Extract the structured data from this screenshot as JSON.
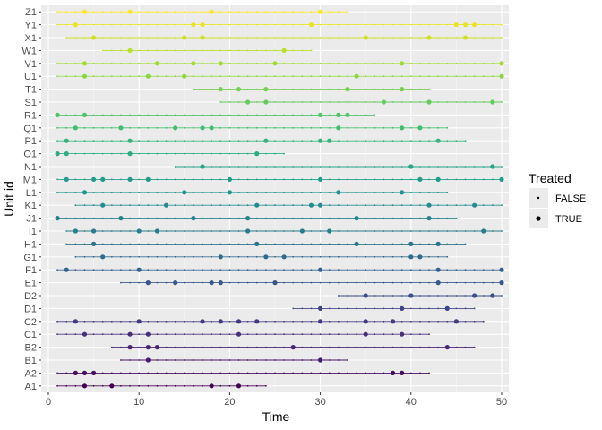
{
  "chart_data": {
    "type": "scatter",
    "xlabel": "Time",
    "ylabel": "Unit id",
    "xlim": [
      0,
      51
    ],
    "x_ticks": [
      0,
      10,
      20,
      30,
      40,
      50
    ],
    "grid": true,
    "colormap": "viridis",
    "legend": {
      "title": "Treated",
      "position": "right",
      "entries": [
        {
          "label": "FALSE",
          "point": "small"
        },
        {
          "label": "TRUE",
          "point": "large"
        }
      ]
    },
    "units": [
      {
        "id": "A1",
        "start": 1,
        "end": 24,
        "treated": [
          4,
          7,
          18,
          21
        ]
      },
      {
        "id": "A2",
        "start": 1,
        "end": 42,
        "treated": [
          3,
          4,
          5,
          38,
          39
        ]
      },
      {
        "id": "B1",
        "start": 8,
        "end": 33,
        "treated": [
          11,
          30
        ]
      },
      {
        "id": "B2",
        "start": 7,
        "end": 47,
        "treated": [
          9,
          11,
          12,
          27,
          44
        ]
      },
      {
        "id": "C1",
        "start": 1,
        "end": 42,
        "treated": [
          4,
          9,
          11,
          21,
          35,
          39
        ]
      },
      {
        "id": "C2",
        "start": 1,
        "end": 48,
        "treated": [
          3,
          10,
          17,
          19,
          21,
          23,
          30,
          35,
          38,
          45
        ]
      },
      {
        "id": "D1",
        "start": 27,
        "end": 47,
        "treated": [
          30,
          39,
          44
        ]
      },
      {
        "id": "D2",
        "start": 32,
        "end": 50,
        "treated": [
          35,
          40,
          47,
          49
        ]
      },
      {
        "id": "E1",
        "start": 8,
        "end": 50,
        "treated": [
          11,
          14,
          18,
          19,
          25,
          43,
          50
        ]
      },
      {
        "id": "F1",
        "start": 1,
        "end": 50,
        "treated": [
          2,
          10,
          30,
          43,
          50
        ]
      },
      {
        "id": "G1",
        "start": 3,
        "end": 44,
        "treated": [
          6,
          19,
          24,
          26,
          40,
          41
        ]
      },
      {
        "id": "H1",
        "start": 2,
        "end": 46,
        "treated": [
          5,
          23,
          34,
          40,
          43
        ]
      },
      {
        "id": "I1",
        "start": 2,
        "end": 50,
        "treated": [
          3,
          5,
          10,
          12,
          22,
          28,
          31,
          48
        ]
      },
      {
        "id": "J1",
        "start": 1,
        "end": 45,
        "treated": [
          1,
          8,
          16,
          22,
          34,
          42
        ]
      },
      {
        "id": "K1",
        "start": 3,
        "end": 50,
        "treated": [
          6,
          13,
          23,
          29,
          30,
          42,
          47
        ]
      },
      {
        "id": "L1",
        "start": 1,
        "end": 44,
        "treated": [
          4,
          15,
          20,
          32,
          39
        ]
      },
      {
        "id": "M1",
        "start": 1,
        "end": 50,
        "treated": [
          2,
          5,
          6,
          9,
          11,
          20,
          30,
          41,
          43,
          50
        ]
      },
      {
        "id": "N1",
        "start": 14,
        "end": 50,
        "treated": [
          17,
          40,
          49
        ]
      },
      {
        "id": "O1",
        "start": 1,
        "end": 26,
        "treated": [
          1,
          2,
          9,
          23
        ]
      },
      {
        "id": "P1",
        "start": 1,
        "end": 46,
        "treated": [
          2,
          9,
          24,
          30,
          31,
          43
        ]
      },
      {
        "id": "Q1",
        "start": 1,
        "end": 44,
        "treated": [
          3,
          8,
          14,
          17,
          18,
          32,
          39,
          41
        ]
      },
      {
        "id": "R1",
        "start": 1,
        "end": 36,
        "treated": [
          1,
          4,
          30,
          32,
          33
        ]
      },
      {
        "id": "S1",
        "start": 19,
        "end": 50,
        "treated": [
          22,
          24,
          37,
          42,
          49
        ]
      },
      {
        "id": "T1",
        "start": 16,
        "end": 42,
        "treated": [
          19,
          21,
          24,
          33,
          39
        ]
      },
      {
        "id": "U1",
        "start": 1,
        "end": 50,
        "treated": [
          4,
          11,
          15,
          34,
          50
        ]
      },
      {
        "id": "V1",
        "start": 1,
        "end": 50,
        "treated": [
          4,
          12,
          16,
          19,
          25,
          39,
          50
        ]
      },
      {
        "id": "W1",
        "start": 6,
        "end": 29,
        "treated": [
          9,
          26
        ]
      },
      {
        "id": "X1",
        "start": 2,
        "end": 50,
        "treated": [
          5,
          15,
          17,
          35,
          42,
          46
        ]
      },
      {
        "id": "Y1",
        "start": 1,
        "end": 50,
        "treated": [
          3,
          16,
          17,
          29,
          45,
          46,
          47
        ]
      },
      {
        "id": "Z1",
        "start": 1,
        "end": 33,
        "treated": [
          4,
          9,
          18,
          30
        ]
      }
    ]
  }
}
